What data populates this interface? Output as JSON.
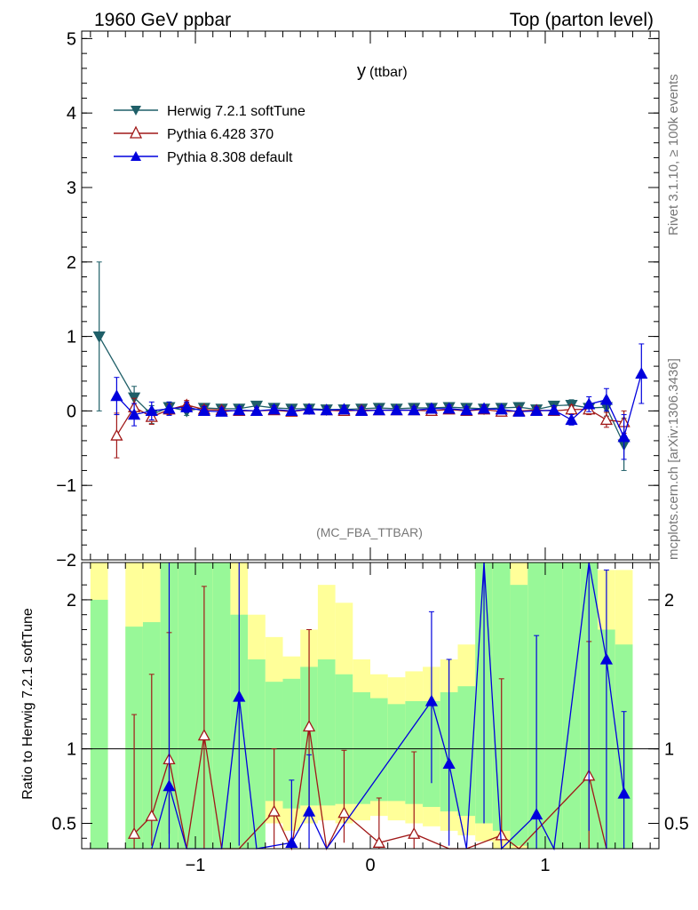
{
  "header": {
    "left": "1960 GeV ppbar",
    "right": "Top (parton level)"
  },
  "side_labels": {
    "rivet": "Rivet 3.1.10, ≥ 100k events",
    "mcplots": "mcplots.cern.ch [arXiv:1306.3436]"
  },
  "chart_data": [
    {
      "type": "line",
      "title_main": "y",
      "title_sub": "(ttbar)",
      "annotation": "(MC_FBA_TTBAR)",
      "xlim": [
        -1.65,
        1.65
      ],
      "ylim": [
        -2,
        5.1
      ],
      "y_ticks": [
        -2,
        -1,
        0,
        1,
        2,
        3,
        4,
        5
      ],
      "y_tick_labels": [
        "−2",
        "−1",
        "0",
        "1",
        "2",
        "3",
        "4",
        "5"
      ],
      "legend_position": "top-left",
      "series": [
        {
          "name": "Herwig 7.2.1 softTune",
          "color": "#1f5f68",
          "marker": "triangle-down-filled",
          "x": [
            -1.55,
            -1.35,
            -1.25,
            -1.15,
            -1.05,
            -0.95,
            -0.85,
            -0.75,
            -0.65,
            -0.55,
            -0.45,
            -0.35,
            -0.25,
            -0.15,
            -0.05,
            0.05,
            0.15,
            0.25,
            0.35,
            0.45,
            0.55,
            0.65,
            0.75,
            0.85,
            0.95,
            1.05,
            1.15,
            1.25,
            1.35,
            1.45
          ],
          "y": [
            1.0,
            0.18,
            -0.05,
            0.05,
            0.0,
            0.04,
            0.03,
            0.03,
            0.07,
            0.04,
            0.03,
            0.03,
            0.02,
            0.02,
            0.03,
            0.04,
            0.03,
            0.04,
            0.04,
            0.05,
            0.04,
            0.03,
            0.04,
            0.05,
            0.02,
            0.07,
            0.08,
            0.04,
            0.05,
            -0.45
          ],
          "err": [
            1.0,
            0.15,
            0.12,
            0.07,
            0.06,
            0.05,
            0.05,
            0.05,
            0.05,
            0.05,
            0.05,
            0.05,
            0.05,
            0.05,
            0.05,
            0.05,
            0.05,
            0.05,
            0.05,
            0.05,
            0.05,
            0.05,
            0.05,
            0.05,
            0.05,
            0.06,
            0.07,
            0.08,
            0.12,
            0.35
          ]
        },
        {
          "name": "Pythia 6.428 370",
          "color": "#a01818",
          "marker": "triangle-up-open",
          "x": [
            -1.45,
            -1.35,
            -1.25,
            -1.15,
            -1.05,
            -0.95,
            -0.85,
            -0.75,
            -0.65,
            -0.55,
            -0.45,
            -0.35,
            -0.25,
            -0.15,
            -0.05,
            0.05,
            0.15,
            0.25,
            0.35,
            0.45,
            0.55,
            0.65,
            0.75,
            0.85,
            0.95,
            1.05,
            1.15,
            1.25,
            1.35,
            1.45
          ],
          "y": [
            -0.33,
            0.05,
            -0.08,
            0.02,
            0.08,
            0.02,
            0.01,
            0.0,
            0.0,
            0.01,
            -0.01,
            0.02,
            0.01,
            0.0,
            0.01,
            0.01,
            0.01,
            0.01,
            0.0,
            0.02,
            0.0,
            0.02,
            -0.01,
            0.0,
            0.01,
            0.0,
            0.02,
            0.02,
            -0.12,
            -0.15
          ],
          "err": [
            0.3,
            0.12,
            0.1,
            0.07,
            0.06,
            0.05,
            0.05,
            0.05,
            0.05,
            0.05,
            0.05,
            0.05,
            0.05,
            0.05,
            0.05,
            0.05,
            0.05,
            0.05,
            0.05,
            0.05,
            0.05,
            0.05,
            0.05,
            0.05,
            0.05,
            0.05,
            0.06,
            0.07,
            0.1,
            0.15
          ]
        },
        {
          "name": "Pythia 8.308 default",
          "color": "#0000dd",
          "marker": "triangle-up-filled",
          "x": [
            -1.45,
            -1.35,
            -1.25,
            -1.15,
            -1.05,
            -0.95,
            -0.85,
            -0.75,
            -0.65,
            -0.55,
            -0.45,
            -0.35,
            -0.25,
            -0.15,
            -0.05,
            0.05,
            0.15,
            0.25,
            0.35,
            0.45,
            0.55,
            0.65,
            0.75,
            0.85,
            0.95,
            1.05,
            1.15,
            1.25,
            1.35,
            1.45,
            1.55
          ],
          "y": [
            0.2,
            -0.05,
            0.0,
            0.03,
            0.05,
            0.0,
            -0.01,
            0.01,
            0.0,
            0.02,
            0.0,
            0.02,
            0.01,
            0.02,
            0.0,
            0.01,
            0.01,
            0.01,
            0.03,
            0.03,
            0.01,
            0.03,
            0.02,
            -0.01,
            0.0,
            0.01,
            -0.12,
            0.09,
            0.15,
            -0.35,
            0.5
          ],
          "err": [
            0.25,
            0.15,
            0.12,
            0.09,
            0.07,
            0.06,
            0.05,
            0.05,
            0.05,
            0.05,
            0.05,
            0.05,
            0.05,
            0.05,
            0.05,
            0.05,
            0.05,
            0.05,
            0.05,
            0.05,
            0.05,
            0.05,
            0.05,
            0.05,
            0.05,
            0.06,
            0.07,
            0.1,
            0.15,
            0.3,
            0.4
          ]
        }
      ]
    },
    {
      "type": "line",
      "ylabel": "Ratio to Herwig 7.2.1 softTune",
      "xlim": [
        -1.65,
        1.65
      ],
      "ylim": [
        0.33,
        2.25
      ],
      "x_ticks": [
        -1,
        0,
        1
      ],
      "x_tick_labels": [
        "−1",
        "0",
        "1"
      ],
      "y_ticks": [
        0.5,
        1,
        2
      ],
      "y_tick_labels": [
        "0.5",
        "1",
        "2"
      ],
      "reference_line": 1,
      "band_colors": {
        "inner": "#98f898",
        "outer": "#ffff99"
      },
      "bands": {
        "x_edges": [
          -1.6,
          -1.5,
          -1.4,
          -1.3,
          -1.2,
          -1.1,
          -1.0,
          -0.9,
          -0.8,
          -0.7,
          -0.6,
          -0.5,
          -0.4,
          -0.3,
          -0.2,
          -0.1,
          0.0,
          0.1,
          0.2,
          0.3,
          0.4,
          0.5,
          0.6,
          0.7,
          0.8,
          0.9,
          1.0,
          1.1,
          1.2,
          1.3,
          1.4,
          1.5
        ],
        "inner_low": [
          0.3,
          null,
          0.3,
          0.3,
          0.3,
          0.3,
          0.3,
          0.3,
          0.3,
          0.3,
          0.65,
          0.6,
          0.62,
          0.62,
          0.63,
          0.63,
          0.65,
          0.65,
          0.63,
          0.61,
          0.58,
          0.55,
          0.5,
          0.45,
          0.35,
          0.3,
          0.3,
          0.3,
          0.3,
          0.3,
          0.3
        ],
        "inner_high": [
          2.0,
          null,
          1.82,
          1.85,
          2.25,
          2.25,
          2.25,
          2.25,
          1.9,
          1.6,
          1.45,
          1.47,
          1.55,
          1.6,
          1.5,
          1.38,
          1.34,
          1.3,
          1.32,
          1.32,
          1.38,
          1.42,
          2.25,
          2.25,
          2.1,
          2.25,
          2.25,
          2.25,
          2.25,
          1.8,
          1.7
        ],
        "outer_low": [
          0.3,
          null,
          0.3,
          0.3,
          0.3,
          0.3,
          0.3,
          0.3,
          0.3,
          0.3,
          0.5,
          0.45,
          0.5,
          0.52,
          0.5,
          0.52,
          0.55,
          0.52,
          0.5,
          0.48,
          0.45,
          0.42,
          0.38,
          0.33,
          0.3,
          0.3,
          0.3,
          0.3,
          0.3,
          0.3,
          0.3
        ],
        "outer_high": [
          2.25,
          null,
          2.25,
          2.25,
          2.25,
          2.25,
          2.25,
          2.25,
          2.25,
          1.9,
          1.75,
          1.62,
          1.8,
          2.1,
          1.98,
          1.6,
          1.5,
          1.48,
          1.52,
          1.55,
          1.6,
          1.7,
          2.25,
          2.25,
          2.25,
          2.25,
          2.25,
          2.25,
          2.25,
          2.2,
          2.2
        ]
      },
      "series": [
        {
          "name": "Pythia 6.428 370",
          "color": "#a01818",
          "marker": "triangle-up-open",
          "x": [
            -1.35,
            -1.25,
            -1.15,
            -1.05,
            -0.95,
            -0.85,
            -0.75,
            -0.55,
            -0.45,
            -0.35,
            -0.25,
            -0.15,
            0.05,
            0.25,
            0.45,
            0.55,
            0.75,
            0.85,
            1.25,
            1.35
          ],
          "y": [
            0.43,
            0.55,
            0.93,
            0.3,
            1.09,
            0.33,
            0.3,
            0.58,
            0.3,
            1.15,
            0.3,
            0.57,
            0.37,
            0.43,
            0.3,
            0.3,
            0.42,
            0.3,
            0.82,
            0.3
          ],
          "err_low": [
            0.15,
            0.2,
            0.5,
            0.0,
            0.8,
            0.0,
            0.0,
            0.25,
            0.0,
            0.6,
            0.0,
            0.2,
            0.05,
            0.15,
            0.0,
            0.0,
            0.1,
            0.0,
            0.5,
            0.0
          ],
          "err_high": [
            0.8,
            0.95,
            0.85,
            0.0,
            1.0,
            0.0,
            0.0,
            0.42,
            0.0,
            0.65,
            0.0,
            0.42,
            0.3,
            0.55,
            0.0,
            0.0,
            1.05,
            0.0,
            0.9,
            0.0
          ]
        },
        {
          "name": "Pythia 8.308 default",
          "color": "#0000dd",
          "marker": "triangle-up-filled",
          "x": [
            -1.25,
            -1.15,
            -1.05,
            -0.85,
            -0.75,
            -0.65,
            -0.45,
            -0.35,
            -0.25,
            0.35,
            0.45,
            0.55,
            0.65,
            0.75,
            0.95,
            1.05,
            1.25,
            1.35,
            1.45
          ],
          "y": [
            0.3,
            0.75,
            0.3,
            0.3,
            1.35,
            0.3,
            0.37,
            0.58,
            0.3,
            1.32,
            0.9,
            0.3,
            2.3,
            0.3,
            0.56,
            0.3,
            2.25,
            1.6,
            0.7
          ],
          "err_low": [
            0,
            0.45,
            0,
            0,
            1.0,
            0,
            0.07,
            0.25,
            0,
            0.55,
            0.55,
            0,
            1.8,
            0,
            0.3,
            0,
            1.8,
            1.3,
            0.4
          ],
          "err_high": [
            0,
            1.6,
            0,
            0,
            1.0,
            0,
            0.42,
            0.38,
            0,
            0.6,
            0.7,
            0,
            0,
            0,
            1.2,
            0,
            0,
            0.6,
            0.55
          ]
        }
      ]
    }
  ]
}
